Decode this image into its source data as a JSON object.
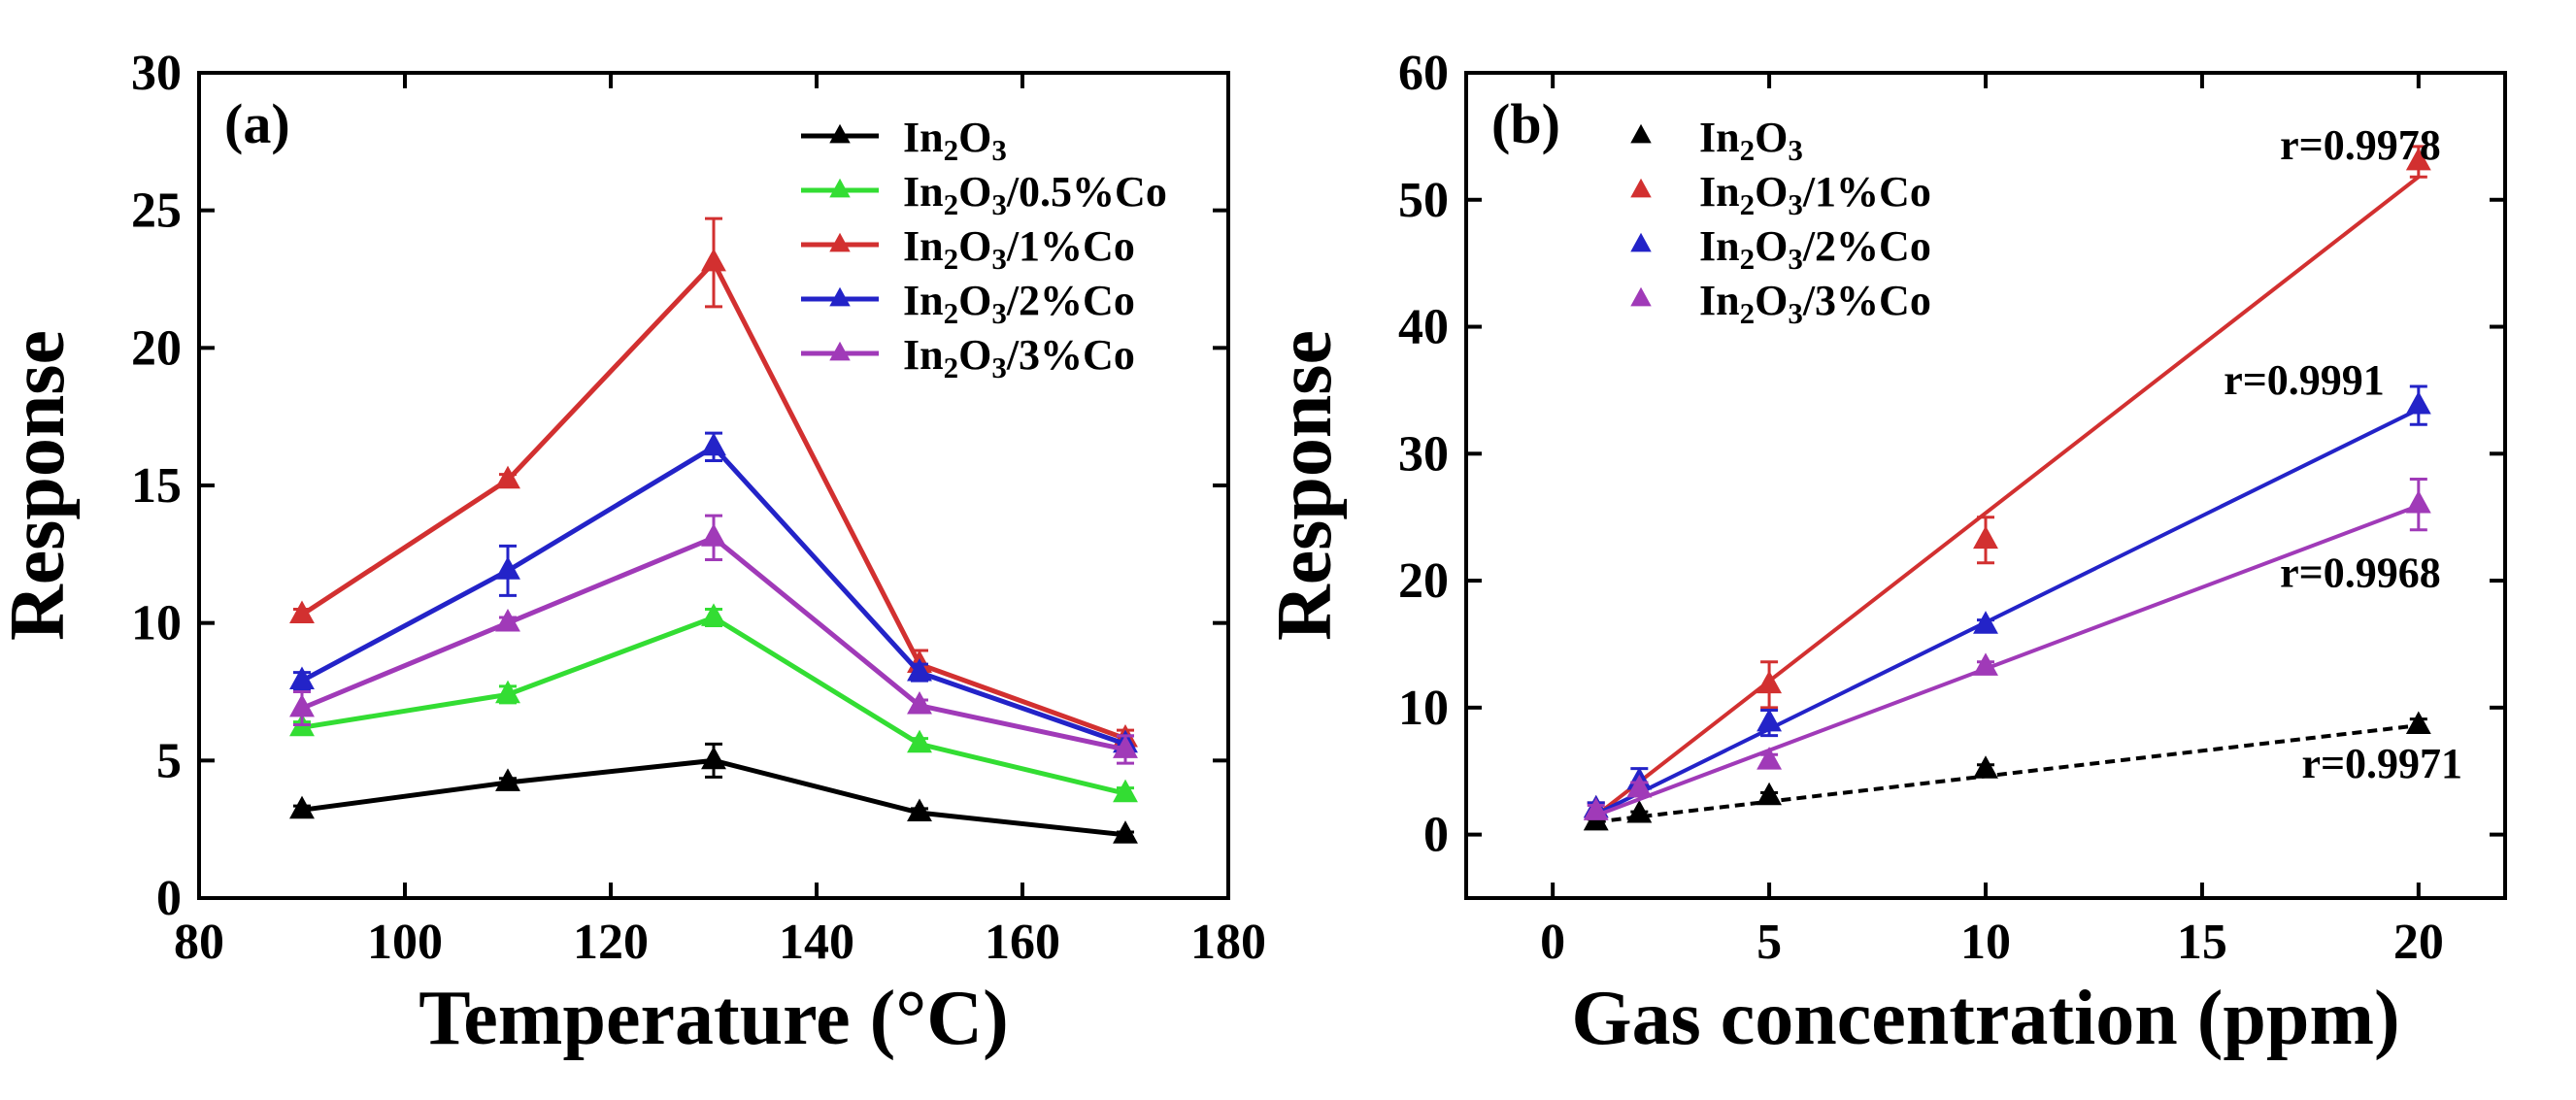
{
  "chart_data": [
    {
      "panel_label": "(a)",
      "type": "line",
      "xlabel": "Temperature (°C)",
      "ylabel": "Response",
      "xlim": [
        80,
        180
      ],
      "ylim": [
        0,
        30
      ],
      "xticks": [
        "80",
        "100",
        "120",
        "140",
        "160",
        "180"
      ],
      "yticks": [
        "0",
        "5",
        "10",
        "15",
        "20",
        "25",
        "30"
      ],
      "legend_position": "top-right",
      "grid": false,
      "x": [
        90,
        110,
        130,
        150,
        170
      ],
      "series": [
        {
          "name": "In2O3",
          "color": "#000000",
          "values": [
            3.2,
            4.2,
            5.0,
            3.1,
            2.3
          ],
          "errors": [
            0.15,
            0.15,
            0.6,
            0.15,
            0.1
          ]
        },
        {
          "name": "In2O3/0.5%Co",
          "color": "#33dd33",
          "values": [
            6.2,
            7.4,
            10.2,
            5.6,
            3.8
          ],
          "errors": [
            0.2,
            0.3,
            0.3,
            0.2,
            0.2
          ]
        },
        {
          "name": "In2O3/1%Co",
          "color": "#d23030",
          "values": [
            10.3,
            15.2,
            23.1,
            8.5,
            5.8
          ],
          "errors": [
            0.2,
            0.2,
            1.6,
            0.5,
            0.3
          ]
        },
        {
          "name": "In2O3/2%Co",
          "color": "#2323c8",
          "values": [
            7.9,
            11.9,
            16.4,
            8.2,
            5.6
          ],
          "errors": [
            0.3,
            0.9,
            0.5,
            0.3,
            0.3
          ]
        },
        {
          "name": "In2O3/3%Co",
          "color": "#a03ab8",
          "values": [
            6.9,
            10.0,
            13.1,
            7.0,
            5.4
          ],
          "errors": [
            0.6,
            0.2,
            0.8,
            0.2,
            0.5
          ]
        }
      ]
    },
    {
      "panel_label": "(b)",
      "type": "scatter",
      "xlabel": "Gas concentration (ppm)",
      "ylabel": "Response",
      "xlim": [
        -2,
        22
      ],
      "ylim": [
        -5,
        60
      ],
      "xticks": [
        "0",
        "5",
        "10",
        "15",
        "20"
      ],
      "yticks": [
        "0",
        "10",
        "20",
        "30",
        "40",
        "50",
        "60"
      ],
      "legend_position": "top-left",
      "grid": false,
      "x": [
        1,
        2,
        5,
        10,
        20
      ],
      "series": [
        {
          "name": "In2O3",
          "color": "#000000",
          "values": [
            1.0,
            1.6,
            3.0,
            5.1,
            8.6
          ],
          "errors": [
            0.2,
            0.2,
            0.3,
            0.4,
            0.5
          ],
          "fit": [
            [
              1,
              1.0
            ],
            [
              20,
              8.6
            ]
          ],
          "fit_style": "dashed",
          "r_text": "r=0.9971",
          "r_pos": [
            17.3,
            4.5
          ]
        },
        {
          "name": "In2O3/1%Co",
          "color": "#d23030",
          "values": [
            2.0,
            3.6,
            11.8,
            23.2,
            53.0
          ],
          "errors": [
            0.5,
            0.5,
            1.8,
            1.8,
            1.2
          ],
          "fit": [
            [
              1,
              1.5
            ],
            [
              20,
              51.8
            ]
          ],
          "fit_style": "solid",
          "r_text": "r=0.9978",
          "r_pos": [
            16.8,
            53.2
          ]
        },
        {
          "name": "In2O3/2%Co",
          "color": "#2323c8",
          "values": [
            2.0,
            4.2,
            8.8,
            16.5,
            33.8
          ],
          "errors": [
            0.5,
            1.0,
            1.0,
            0.4,
            1.5
          ],
          "fit": [
            [
              1,
              1.6
            ],
            [
              20,
              33.5
            ]
          ],
          "fit_style": "solid",
          "r_text": "r=0.9991",
          "r_pos": [
            15.5,
            34.7
          ]
        },
        {
          "name": "In2O3/3%Co",
          "color": "#a03ab8",
          "values": [
            1.8,
            3.6,
            5.8,
            13.2,
            26.0
          ],
          "errors": [
            0.5,
            0.5,
            0.5,
            0.4,
            2.0
          ],
          "fit": [
            [
              1,
              1.5
            ],
            [
              20,
              25.9
            ]
          ],
          "fit_style": "solid",
          "r_text": "r=0.9968",
          "r_pos": [
            16.8,
            19.5
          ]
        }
      ]
    }
  ]
}
